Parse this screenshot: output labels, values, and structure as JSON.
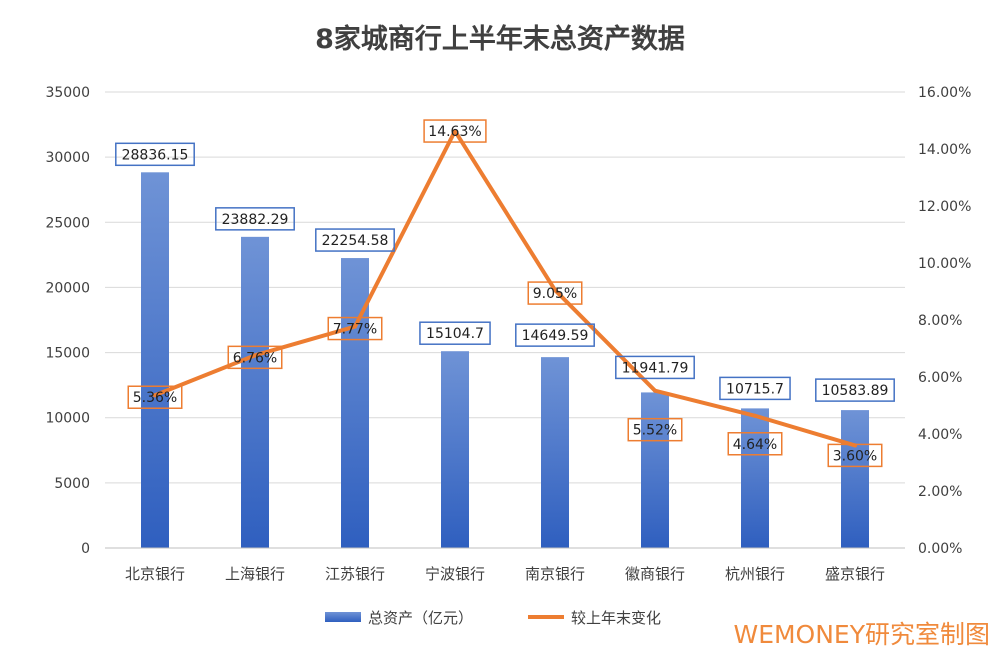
{
  "chart_data": {
    "type": "bar+line",
    "title": "8家城商行上半年末总资产数据",
    "categories": [
      "北京银行",
      "上海银行",
      "江苏银行",
      "宁波银行",
      "南京银行",
      "徽商银行",
      "杭州银行",
      "盛京银行"
    ],
    "series": [
      {
        "name": "总资产（亿元）",
        "type": "bar",
        "axis": "left",
        "values": [
          28836.15,
          23882.29,
          22254.58,
          15104.7,
          14649.59,
          11941.79,
          10715.7,
          10583.89
        ],
        "labels": [
          "28836.15",
          "23882.29",
          "22254.58",
          "15104.7",
          "14649.59",
          "11941.79",
          "10715.7",
          "10583.89"
        ],
        "color": "#4472c4"
      },
      {
        "name": "较上年末变化",
        "type": "line",
        "axis": "right",
        "values": [
          5.36,
          6.76,
          7.77,
          14.63,
          9.05,
          5.52,
          4.64,
          3.6
        ],
        "labels": [
          "5.36%",
          "6.76%",
          "7.77%",
          "14.63%",
          "9.05%",
          "5.52%",
          "4.64%",
          "3.60%"
        ],
        "color": "#ed7d31"
      }
    ],
    "y_left": {
      "min": 0,
      "max": 35000,
      "step": 5000,
      "ticks": [
        "0",
        "5000",
        "10000",
        "15000",
        "20000",
        "25000",
        "30000",
        "35000"
      ]
    },
    "y_right": {
      "min": 0,
      "max": 16,
      "step": 2,
      "ticks": [
        "0.00%",
        "2.00%",
        "4.00%",
        "6.00%",
        "8.00%",
        "10.00%",
        "12.00%",
        "14.00%",
        "16.00%"
      ]
    },
    "grid": true,
    "legend_position": "bottom"
  },
  "watermark": "WEMONEY研究室制图"
}
